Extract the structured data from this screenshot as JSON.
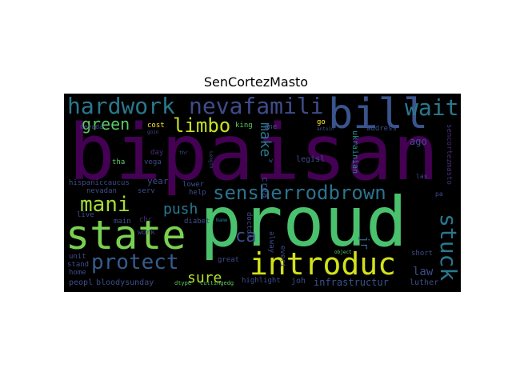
{
  "title": "SenCortezMasto",
  "words": {
    "bipaisan": "bipaisan",
    "proud": "proud",
    "state": "state",
    "introduc": "introduc",
    "bill": "bill",
    "hardwork": "hardwork",
    "nevafamili": "nevafamili",
    "wait": "wait",
    "sensherrodbrown": "sensherrodbrown",
    "mani": "mani",
    "protect": "protect",
    "stuck": "stuck",
    "limbo": "limbo",
    "green": "green",
    "push": "push",
    "sure": "sure",
    "ca": "ca",
    "make": "make",
    "crea": "crea",
    "jr": "jr",
    "law": "law",
    "ago": "ago",
    "infrastructur": "infrastructur",
    "luther": "luther",
    "joh": "joh",
    "highlight": "highlight",
    "bloodysunday": "bloodysunday",
    "peopl": "peopl",
    "home": "home",
    "unit": "unit",
    "stand": "stand",
    "live": "live",
    "nevadan": "nevadan",
    "hispaniccaucus": "hispaniccaucus",
    "year": "year",
    "serv": "serv",
    "tha": "tha",
    "vega": "vega",
    "day": "day",
    "cost": "cost",
    "nevada": "nevada",
    "king": "king",
    "one": "one",
    "go": "go",
    "address": "address",
    "ukrainian": "ukrainian",
    "legisl": "legisl",
    "lower": "lower",
    "help": "help",
    "diabet": "diabet",
    "chc": "chc",
    "main": "main",
    "work": "work",
    "great": "great",
    "alway": "alway",
    "everi": "everi",
    "doctor": "doctor",
    "short": "short",
    "las": "las",
    "pa": "pa",
    "sencortezmasto": "sencortezmasto",
    "w": "w",
    "cuttingedg": "cuttingedg",
    "dtype": "dtype",
    "object": "object",
    "name": "Name",
    "thr": "thr",
    "goin": "goin",
    "antoin": "antoin",
    "length": "Length"
  },
  "colors": {
    "background": "#000000",
    "purple": "#440154",
    "darkPurple": "#472c7a",
    "blueGray": "#3e4c8a",
    "teal": "#2a788e",
    "tealGreen": "#21918c",
    "green": "#5ec962",
    "brightGreen": "#7ad151",
    "yellowGreen": "#addc30",
    "yellow": "#d2e21b",
    "gold": "#fde725"
  }
}
